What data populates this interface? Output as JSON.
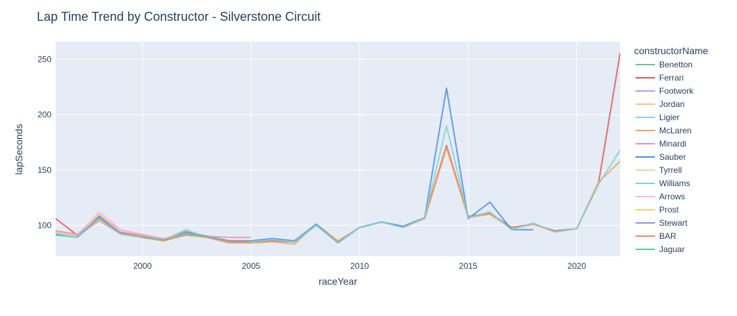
{
  "chart_data": {
    "type": "line",
    "title": "Lap Time Trend by Constructor - Silverstone Circuit",
    "xlabel": "raceYear",
    "ylabel": "lapSeconds",
    "xlim": [
      1996,
      2022
    ],
    "ylim": [
      72,
      266
    ],
    "x_ticks": [
      2000,
      2005,
      2010,
      2015,
      2020
    ],
    "y_ticks": [
      100,
      150,
      200,
      250
    ],
    "grid": true,
    "legend_title": "constructorName",
    "legend_position": "right",
    "background": "#e5ecf6",
    "series": [
      {
        "name": "Benetton",
        "color": "#66c2a5",
        "x": [
          1996,
          1997,
          1998,
          1999,
          2000,
          2001
        ],
        "y": [
          91,
          89,
          106,
          93,
          89,
          87
        ]
      },
      {
        "name": "Ferrari",
        "color": "#e15759",
        "x": [
          1996,
          1997,
          1998,
          1999,
          2000,
          2001,
          2002,
          2003,
          2004,
          2005,
          2006,
          2007,
          2008,
          2009,
          2010,
          2011,
          2012,
          2013,
          2014,
          2015,
          2016,
          2017,
          2018,
          2019,
          2020,
          2021,
          2022
        ],
        "y": [
          106,
          91,
          106,
          93,
          89,
          86,
          93,
          89,
          85,
          85,
          86,
          85,
          100,
          85,
          98,
          103,
          99,
          107,
          172,
          108,
          111,
          98,
          101,
          95,
          97,
          138,
          256
        ]
      },
      {
        "name": "Footwork",
        "color": "#b19cf5",
        "x": [
          1996,
          1997
        ],
        "y": [
          93,
          90
        ]
      },
      {
        "name": "Jordan",
        "color": "#ffbe8a",
        "x": [
          1996,
          1997,
          1998,
          1999,
          2000,
          2001,
          2002,
          2003,
          2004,
          2005
        ],
        "y": [
          94,
          91,
          107,
          94,
          90,
          88,
          95,
          90,
          86,
          86
        ]
      },
      {
        "name": "Ligier",
        "color": "#85d5ff",
        "x": [
          1996
        ],
        "y": [
          93
        ]
      },
      {
        "name": "McLaren",
        "color": "#f5a455",
        "x": [
          1996,
          1997,
          1998,
          1999,
          2000,
          2001,
          2002,
          2003,
          2004,
          2005,
          2006,
          2007,
          2008,
          2009,
          2010,
          2011,
          2012,
          2013,
          2014,
          2015,
          2016,
          2017,
          2018,
          2019,
          2020,
          2021,
          2022
        ],
        "y": [
          92,
          90,
          104,
          92,
          89,
          86,
          91,
          89,
          84,
          84,
          85,
          83,
          101,
          86,
          98,
          103,
          98,
          106,
          170,
          107,
          110,
          97,
          101,
          94,
          97,
          139,
          158
        ]
      },
      {
        "name": "Minardi",
        "color": "#f28fb1",
        "x": [
          1996,
          1997,
          1998,
          1999,
          2000,
          2001,
          2002,
          2003,
          2004,
          2005
        ],
        "y": [
          95,
          92,
          109,
          96,
          91,
          88,
          91,
          90,
          89,
          89
        ]
      },
      {
        "name": "Sauber",
        "color": "#4b8fe8",
        "x": [
          1996,
          1997,
          1998,
          1999,
          2000,
          2001,
          2002,
          2003,
          2004,
          2005,
          2006,
          2007,
          2008,
          2009,
          2010,
          2011,
          2012,
          2013,
          2014,
          2015,
          2016,
          2017,
          2018
        ],
        "y": [
          92,
          90,
          108,
          93,
          89,
          87,
          94,
          90,
          86,
          86,
          88,
          86,
          101,
          84,
          98,
          103,
          99,
          107,
          224,
          106,
          121,
          96,
          96
        ]
      },
      {
        "name": "Tyrrell",
        "color": "#c9e6a1",
        "x": [
          1996,
          1997,
          1998
        ],
        "y": [
          93,
          90,
          107
        ]
      },
      {
        "name": "Williams",
        "color": "#7dd3d9",
        "x": [
          1996,
          1997,
          1998,
          1999,
          2000,
          2001,
          2002,
          2003,
          2004,
          2005,
          2006,
          2007,
          2008,
          2009,
          2010,
          2011,
          2012,
          2013,
          2014,
          2015,
          2016,
          2017,
          2018,
          2019,
          2020,
          2021,
          2022
        ],
        "y": [
          91,
          89,
          106,
          92,
          89,
          87,
          96,
          89,
          85,
          85,
          87,
          85,
          100,
          84,
          98,
          103,
          98,
          107,
          190,
          107,
          112,
          96,
          102,
          94,
          97,
          137,
          168
        ]
      },
      {
        "name": "Arrows",
        "color": "#f5b5f5",
        "x": [
          1997,
          1998,
          1999,
          2000,
          2001,
          2002
        ],
        "y": [
          91,
          112,
          96,
          92,
          88,
          93
        ]
      },
      {
        "name": "Prost",
        "color": "#f7d26b",
        "x": [
          1997,
          1998,
          1999,
          2000,
          2001
        ],
        "y": [
          90,
          110,
          94,
          90,
          87
        ]
      },
      {
        "name": "Stewart",
        "color": "#8c94e6",
        "x": [
          1997,
          1998,
          1999
        ],
        "y": [
          90,
          107,
          93
        ]
      },
      {
        "name": "BAR",
        "color": "#ef8a62",
        "x": [
          1999,
          2000,
          2001,
          2002,
          2003,
          2004,
          2005
        ],
        "y": [
          94,
          90,
          87,
          93,
          89,
          85,
          85
        ]
      },
      {
        "name": "Jaguar",
        "color": "#5fc7a8",
        "x": [
          2000,
          2001,
          2002,
          2003,
          2004
        ],
        "y": [
          89,
          87,
          92,
          90,
          86
        ]
      }
    ]
  }
}
